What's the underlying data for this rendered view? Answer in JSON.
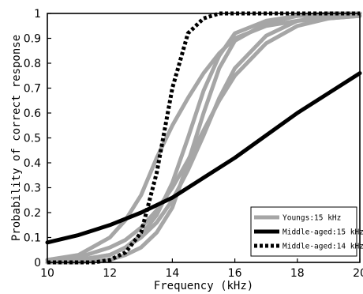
{
  "chart_data": {
    "type": "line",
    "title": "",
    "xlabel": "Frequency (kHz)",
    "ylabel": "Probability of correct response",
    "xlim": [
      10,
      20
    ],
    "ylim": [
      0,
      1
    ],
    "xticks": [
      10,
      12,
      14,
      16,
      18,
      20
    ],
    "xtick_labels": [
      "10",
      "12",
      "14",
      "16",
      "18",
      "20"
    ],
    "yticks": [
      0,
      0.1,
      0.2,
      0.3,
      0.4,
      0.5,
      0.6,
      0.7,
      0.8,
      0.9,
      1
    ],
    "ytick_labels": [
      "0",
      "0.1",
      "0.2",
      "0.3",
      "0.4",
      "0.5",
      "0.6",
      "0.7",
      "0.8",
      "0.9",
      "1"
    ],
    "grid": false,
    "legend_position": "bottom-right",
    "series": [
      {
        "legend": "Youngs:15 kHz",
        "group": "youngs",
        "color": "#a6a6a6",
        "style": "solid",
        "x": [
          10,
          11,
          12,
          12.5,
          13,
          13.5,
          14,
          14.5,
          15,
          15.5,
          16,
          17,
          18,
          19,
          20
        ],
        "y": [
          0.01,
          0.03,
          0.1,
          0.17,
          0.27,
          0.42,
          0.55,
          0.66,
          0.76,
          0.84,
          0.9,
          0.95,
          0.97,
          0.98,
          0.99
        ]
      },
      {
        "group": "youngs",
        "color": "#a6a6a6",
        "style": "solid",
        "x": [
          10,
          11,
          12,
          12.5,
          13,
          13.5,
          14,
          14.5,
          15,
          15.5,
          16,
          17,
          18,
          19,
          20
        ],
        "y": [
          0.0,
          0.01,
          0.03,
          0.06,
          0.11,
          0.19,
          0.32,
          0.5,
          0.69,
          0.83,
          0.92,
          0.97,
          0.99,
          0.99,
          1.0
        ]
      },
      {
        "group": "youngs",
        "color": "#a6a6a6",
        "style": "solid",
        "x": [
          10,
          11,
          12,
          12.5,
          13,
          13.5,
          14,
          14.5,
          15,
          15.5,
          16,
          17,
          18,
          19,
          20
        ],
        "y": [
          0.0,
          0.0,
          0.01,
          0.03,
          0.06,
          0.12,
          0.22,
          0.4,
          0.6,
          0.78,
          0.89,
          0.96,
          0.99,
          1.0,
          1.0
        ]
      },
      {
        "group": "youngs",
        "color": "#a6a6a6",
        "style": "solid",
        "x": [
          10,
          11,
          12,
          12.5,
          13,
          13.5,
          14,
          14.5,
          15,
          15.5,
          16,
          17,
          18,
          19,
          20
        ],
        "y": [
          0.01,
          0.02,
          0.06,
          0.09,
          0.14,
          0.21,
          0.3,
          0.41,
          0.53,
          0.65,
          0.75,
          0.88,
          0.95,
          0.98,
          0.99
        ]
      },
      {
        "group": "youngs",
        "color": "#a6a6a6",
        "style": "solid",
        "x": [
          10,
          11,
          12,
          12.5,
          13,
          13.5,
          14,
          14.5,
          15,
          15.5,
          16,
          17,
          18,
          19,
          20
        ],
        "y": [
          0.0,
          0.01,
          0.03,
          0.06,
          0.1,
          0.16,
          0.25,
          0.37,
          0.51,
          0.66,
          0.78,
          0.91,
          0.97,
          0.99,
          1.0
        ]
      },
      {
        "legend": "Middle-aged:15 kHz",
        "group": "middle15",
        "color": "#000000",
        "style": "solid",
        "x": [
          10,
          11,
          12,
          13,
          14,
          15,
          16,
          17,
          18,
          19,
          20
        ],
        "y": [
          0.08,
          0.11,
          0.15,
          0.2,
          0.26,
          0.34,
          0.42,
          0.51,
          0.6,
          0.68,
          0.76
        ]
      },
      {
        "legend": "Middle-aged:14 kHz",
        "group": "middle14",
        "color": "#000000",
        "style": "dotted",
        "x": [
          10,
          11,
          11.5,
          12,
          12.5,
          13,
          13.5,
          14,
          14.5,
          15,
          15.5,
          16,
          17,
          18,
          19,
          20
        ],
        "y": [
          0.0,
          0.0,
          0.0,
          0.01,
          0.04,
          0.12,
          0.36,
          0.7,
          0.92,
          0.98,
          1.0,
          1.0,
          1.0,
          1.0,
          1.0,
          1.0
        ]
      }
    ]
  }
}
